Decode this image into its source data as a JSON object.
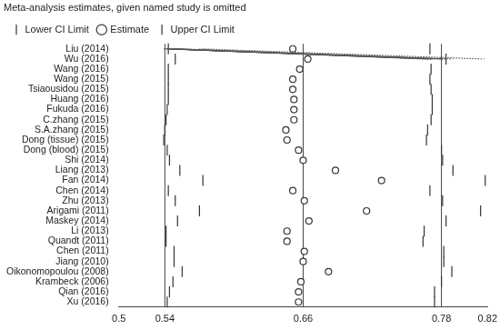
{
  "chart_data": {
    "type": "forest",
    "title": "Meta-analysis estimates, given named study is omitted",
    "categories": [
      "Liu (2014)",
      "Wu (2016)",
      "Wang (2016)",
      "Wang (2015)",
      "Tsiaousidou (2015)",
      "Huang (2016)",
      "Fukuda (2016)",
      "C.zhang (2015)",
      "S.A.zhang (2015)",
      "Dong (tissue) (2015)",
      "Dong (blood) (2015)",
      "Shi (2014)",
      "Liang (2013)",
      "Fan (2014)",
      "Chen (2014)",
      "Zhu (2013)",
      "Arigami (2011)",
      "Maskey (2014)",
      "Li (2013)",
      "Quandt (2011)",
      "Chen (2011)",
      "Jiang (2010)",
      "Oikonomopoulou (2008)",
      "Krambeck (2006)",
      "Qian (2016)",
      "Xu (2016)"
    ],
    "series": [
      {
        "name": "Lower CI Limit",
        "marker": "vline",
        "color": "#333333",
        "values": [
          0.543,
          0.549,
          0.543,
          0.543,
          0.543,
          0.543,
          0.542,
          0.541,
          0.54,
          0.539,
          0.542,
          0.544,
          0.553,
          0.573,
          0.543,
          0.549,
          0.57,
          0.551,
          0.541,
          0.541,
          0.548,
          0.548,
          0.555,
          0.547,
          0.544,
          0.542
        ]
      },
      {
        "name": "Estimate",
        "marker": "circle",
        "color": "#333333",
        "values": [
          0.651,
          0.664,
          0.657,
          0.651,
          0.651,
          0.652,
          0.652,
          0.652,
          0.645,
          0.646,
          0.656,
          0.66,
          0.688,
          0.728,
          0.651,
          0.661,
          0.715,
          0.665,
          0.646,
          0.646,
          0.661,
          0.66,
          0.682,
          0.658,
          0.656,
          0.656
        ]
      },
      {
        "name": "Upper CI Limit",
        "marker": "vline",
        "color": "#333333",
        "values": [
          0.77,
          0.784,
          0.771,
          0.77,
          0.771,
          0.772,
          0.772,
          0.771,
          0.768,
          0.767,
          0.78,
          0.781,
          0.79,
          0.818,
          0.77,
          0.781,
          0.814,
          0.784,
          0.765,
          0.764,
          0.782,
          0.782,
          0.789,
          0.78,
          0.774,
          0.774
        ]
      }
    ],
    "overall": {
      "lower": 0.54,
      "estimate": 0.66,
      "upper": 0.78
    },
    "line_style": "dotted",
    "xlim": [
      0.5,
      0.82
    ],
    "xticks": [
      0.5,
      0.54,
      0.66,
      0.78,
      0.82
    ],
    "grid": false,
    "legend": "top"
  }
}
